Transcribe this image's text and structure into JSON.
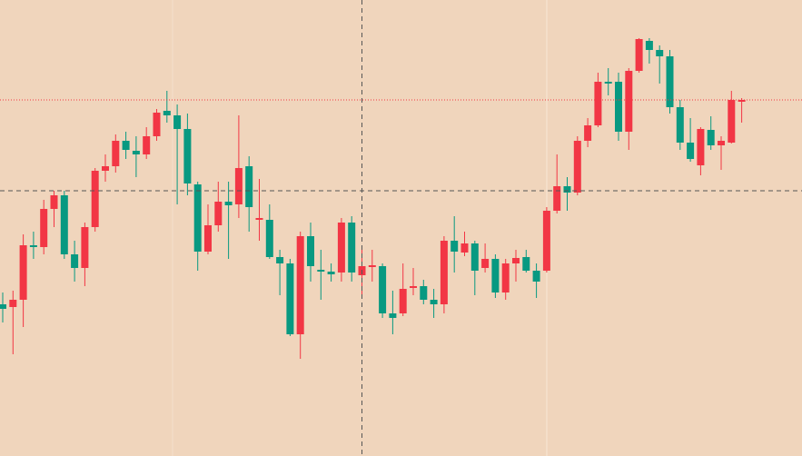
{
  "chart_data": {
    "type": "candlestick",
    "open": [
      167,
      164,
      172,
      232,
      230,
      272,
      287,
      222,
      207,
      252,
      314,
      319,
      347,
      336,
      332,
      352,
      380,
      375,
      360,
      299,
      225,
      254,
      280,
      277,
      319,
      260,
      260,
      219,
      212,
      134,
      242,
      205,
      203,
      202,
      257,
      199,
      208,
      209,
      157,
      157,
      185,
      187,
      172,
      167,
      237,
      224,
      234,
      207,
      217,
      180,
      212,
      219,
      204,
      204,
      270,
      297,
      290,
      347,
      364,
      412,
      412,
      357,
      424,
      457,
      447,
      440,
      384,
      345,
      320,
      359,
      342,
      345,
      390
    ],
    "high": [
      180,
      182,
      244,
      247,
      282,
      292,
      292,
      237,
      257,
      317,
      332,
      354,
      357,
      352,
      362,
      382,
      402,
      387,
      377,
      302,
      277,
      302,
      302,
      375,
      330,
      305,
      277,
      227,
      217,
      247,
      257,
      227,
      212,
      262,
      264,
      232,
      227,
      212,
      182,
      212,
      207,
      194,
      184,
      242,
      264,
      247,
      237,
      234,
      222,
      217,
      227,
      227,
      212,
      274,
      332,
      307,
      352,
      372,
      422,
      427,
      422,
      427,
      460,
      460,
      452,
      447,
      392,
      372,
      362,
      374,
      352,
      402,
      394
    ],
    "low": [
      147,
      112,
      142,
      217,
      222,
      252,
      217,
      192,
      187,
      247,
      302,
      312,
      327,
      307,
      327,
      347,
      367,
      277,
      287,
      204,
      222,
      247,
      217,
      262,
      247,
      237,
      217,
      177,
      132,
      107,
      192,
      172,
      192,
      192,
      192,
      177,
      192,
      152,
      134,
      154,
      177,
      167,
      152,
      157,
      202,
      220,
      177,
      202,
      174,
      172,
      192,
      202,
      174,
      202,
      267,
      270,
      287,
      340,
      362,
      397,
      347,
      337,
      422,
      432,
      410,
      377,
      337,
      324,
      309,
      337,
      315,
      344,
      367
    ],
    "close": [
      162,
      172,
      232,
      230,
      272,
      287,
      222,
      207,
      252,
      314,
      319,
      347,
      337,
      332,
      352,
      378,
      375,
      360,
      300,
      225,
      254,
      280,
      276,
      317,
      274,
      262,
      219,
      212,
      134,
      242,
      209,
      203,
      200,
      257,
      202,
      209,
      210,
      157,
      152,
      184,
      187,
      172,
      167,
      237,
      225,
      234,
      204,
      217,
      180,
      212,
      218,
      204,
      192,
      270,
      297,
      290,
      347,
      364,
      412,
      410,
      357,
      424,
      459,
      447,
      440,
      384,
      345,
      327,
      360,
      342,
      347,
      392,
      392
    ],
    "up_color": "#f23645",
    "down_color": "#089981",
    "ylim": [
      0,
      502
    ],
    "crosshair": {
      "index": 35,
      "value": 292
    },
    "price_line": true
  }
}
